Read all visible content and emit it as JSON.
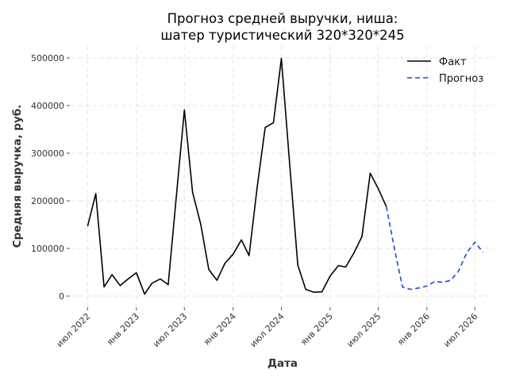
{
  "chart_data": {
    "type": "line",
    "title_line1": "Прогноз средней выручки, ниша:",
    "title_line2": "шатер туристический 320*320*245",
    "xlabel": "Дата",
    "ylabel": "Средняя выручка, руб.",
    "ylim": [
      -20000,
      525000
    ],
    "y_ticks": [
      0,
      100000,
      200000,
      300000,
      400000,
      500000
    ],
    "y_tick_labels": [
      "0",
      "100000",
      "200000",
      "300000",
      "400000",
      "500000"
    ],
    "x_ticks": [
      {
        "date": "2022-07-01",
        "label": "июл 2022"
      },
      {
        "date": "2023-01-01",
        "label": "янв 2023"
      },
      {
        "date": "2023-07-01",
        "label": "июл 2023"
      },
      {
        "date": "2024-01-01",
        "label": "янв 2024"
      },
      {
        "date": "2024-07-01",
        "label": "июл 2024"
      },
      {
        "date": "2025-01-01",
        "label": "янв 2025"
      },
      {
        "date": "2025-07-01",
        "label": "июл 2025"
      },
      {
        "date": "2026-01-01",
        "label": "янв 2026"
      },
      {
        "date": "2026-07-01",
        "label": "июл 2026"
      }
    ],
    "xlim": [
      "2022-05-01",
      "2026-09-10"
    ],
    "grid": true,
    "legend_position": "top-right",
    "series": [
      {
        "name": "Факт",
        "color": "#000000",
        "style": "solid",
        "x": [
          "2022-07-01",
          "2022-08-01",
          "2022-09-01",
          "2022-10-01",
          "2022-11-01",
          "2022-12-01",
          "2023-01-01",
          "2023-02-01",
          "2023-03-01",
          "2023-04-01",
          "2023-05-01",
          "2023-06-01",
          "2023-07-01",
          "2023-08-01",
          "2023-09-01",
          "2023-10-01",
          "2023-11-01",
          "2023-12-01",
          "2024-01-01",
          "2024-02-01",
          "2024-03-01",
          "2024-04-01",
          "2024-05-01",
          "2024-06-01",
          "2024-07-01",
          "2024-08-01",
          "2024-09-01",
          "2024-10-01",
          "2024-11-01",
          "2024-12-01",
          "2025-01-01",
          "2025-02-01",
          "2025-03-01",
          "2025-04-01",
          "2025-05-01",
          "2025-06-01",
          "2025-07-01",
          "2025-08-01"
        ],
        "y": [
          147000,
          215000,
          19000,
          45000,
          22000,
          36000,
          49000,
          4000,
          27000,
          36000,
          24000,
          210000,
          391000,
          218000,
          150000,
          56000,
          33000,
          69000,
          88000,
          118000,
          85000,
          230000,
          354000,
          364000,
          499000,
          280000,
          65000,
          14000,
          8000,
          9000,
          42000,
          64000,
          61000,
          91000,
          125000,
          258000,
          226000,
          188000
        ]
      },
      {
        "name": "Прогноз",
        "color": "#1f4fbf",
        "style": "dashed",
        "x": [
          "2025-08-01",
          "2025-09-01",
          "2025-10-01",
          "2025-11-01",
          "2025-12-01",
          "2026-01-01",
          "2026-02-01",
          "2026-03-01",
          "2026-04-01",
          "2026-05-01",
          "2026-06-01",
          "2026-07-01",
          "2026-08-01"
        ],
        "y": [
          188000,
          98000,
          19000,
          14000,
          17000,
          21000,
          31000,
          29000,
          33000,
          53000,
          92000,
          113000,
          92000
        ]
      }
    ]
  }
}
